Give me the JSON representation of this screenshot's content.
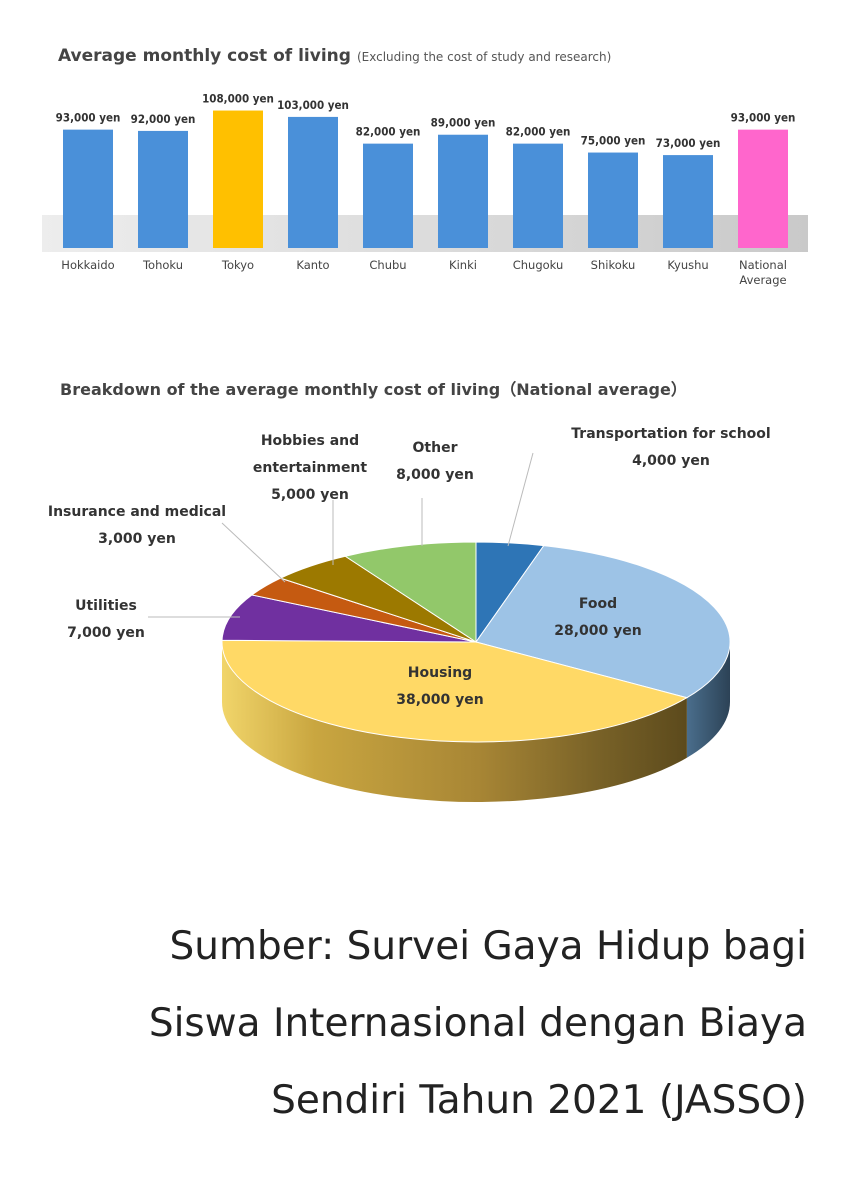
{
  "chart_data": [
    {
      "type": "bar",
      "title": "Average monthly cost of living",
      "subtitle": "(Excluding the cost of study and research)",
      "categories": [
        "Hokkaido",
        "Tohoku",
        "Tokyo",
        "Kanto",
        "Chubu",
        "Kinki",
        "Chugoku",
        "Shikoku",
        "Kyushu",
        "National Average"
      ],
      "values": [
        93000,
        92000,
        108000,
        103000,
        82000,
        89000,
        82000,
        75000,
        73000,
        93000
      ],
      "data_labels": [
        "93,000 yen",
        "92,000 yen",
        "108,000 yen",
        "103,000 yen",
        "82,000 yen",
        "89,000 yen",
        "82,000 yen",
        "75,000 yen",
        "73,000 yen",
        "93,000 yen"
      ],
      "colors": [
        "#4a90d9",
        "#4a90d9",
        "#ffc000",
        "#4a90d9",
        "#4a90d9",
        "#4a90d9",
        "#4a90d9",
        "#4a90d9",
        "#4a90d9",
        "#ff66cc"
      ],
      "ylim": [
        0,
        110000
      ],
      "grid": false,
      "legend": "none"
    },
    {
      "type": "pie",
      "title": "Breakdown of the average monthly cost of living（National average）",
      "slices": [
        {
          "label": "Transportation for school",
          "value": 4000,
          "value_label": "4,000 yen",
          "color": "#2e75b6"
        },
        {
          "label": "Food",
          "value": 28000,
          "value_label": "28,000 yen",
          "color": "#9dc3e6"
        },
        {
          "label": "Housing",
          "value": 38000,
          "value_label": "38,000 yen",
          "color": "#ffd966"
        },
        {
          "label": "Utilities",
          "value": 7000,
          "value_label": "7,000 yen",
          "color": "#7030a0"
        },
        {
          "label": "Insurance and medical",
          "value": 3000,
          "value_label": "3,000 yen",
          "color": "#c55a11"
        },
        {
          "label": "Hobbies and entertainment",
          "value": 5000,
          "value_label": "5,000 yen",
          "color": "#9c7900"
        },
        {
          "label": "Other",
          "value": 8000,
          "value_label": "8,000 yen",
          "color": "#92c86a"
        }
      ],
      "legend": "none"
    }
  ],
  "source": {
    "line1": "Sumber: Survei Gaya Hidup bagi",
    "line2": "Siswa Internasional dengan Biaya",
    "line3": "Sendiri Tahun 2021 (JASSO)"
  }
}
